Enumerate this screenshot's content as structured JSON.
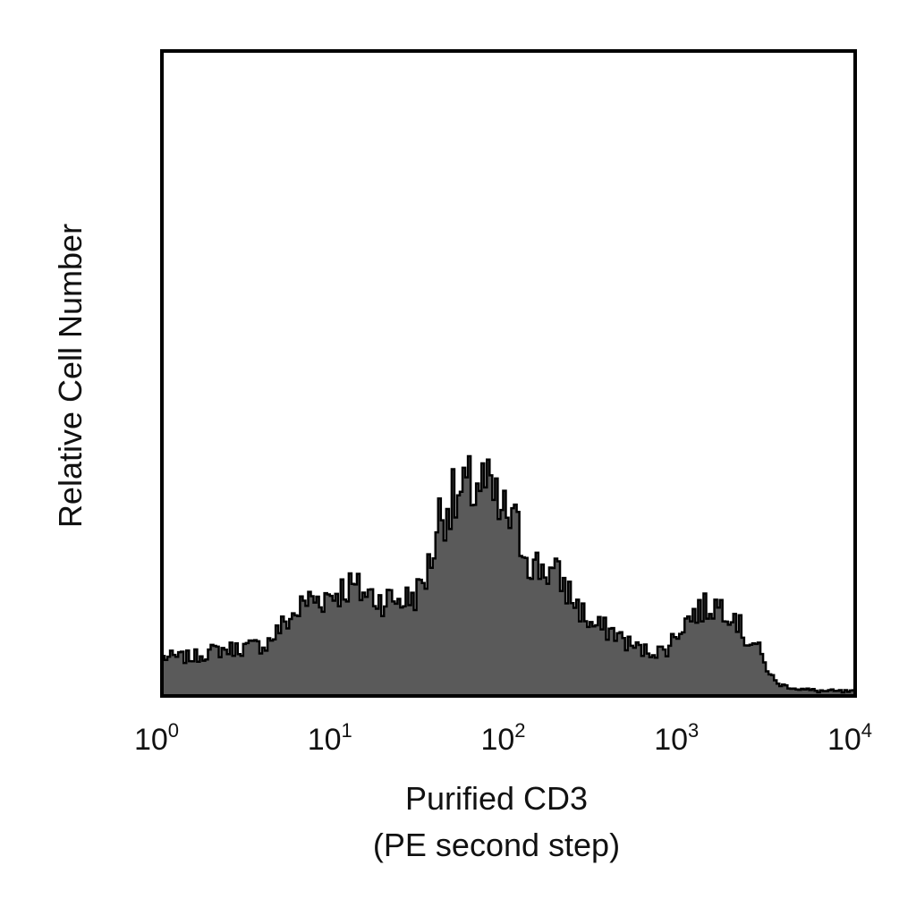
{
  "chart_data": {
    "type": "area",
    "subtype": "flow cytometry histogram",
    "title": "",
    "xlabel_lines": [
      "Purified CD3",
      "(PE second step)"
    ],
    "ylabel": "Relative Cell Number",
    "x_scale": "log10",
    "xlim": [
      1,
      10000
    ],
    "x_ticks": [
      {
        "base": "10",
        "exp": "0",
        "value": 1
      },
      {
        "base": "10",
        "exp": "1",
        "value": 10
      },
      {
        "base": "10",
        "exp": "2",
        "value": 100
      },
      {
        "base": "10",
        "exp": "3",
        "value": 1000
      },
      {
        "base": "10",
        "exp": "4",
        "value": 10000
      }
    ],
    "ylim": [
      0,
      100
    ],
    "y_ticks_visible": false,
    "grid": false,
    "legend": "none",
    "fill_color": "#5a5a5a",
    "line_color": "#000000",
    "series": [
      {
        "x": [
          1.0,
          1.5,
          2.0,
          3.0,
          4.0,
          5.0,
          6.0,
          7.0,
          8.0,
          10.0,
          12.0,
          15.0,
          18.0,
          22.0,
          26.0,
          30.0,
          35.0,
          40.0,
          45.0,
          50.0,
          55.0,
          60.0,
          65.0,
          70.0,
          75.0,
          80.0,
          90.0,
          100.0,
          120.0,
          140.0,
          160.0,
          200.0,
          250.0,
          300.0,
          400.0,
          500.0,
          600.0,
          700.0,
          800.0,
          900.0,
          1000.0,
          1200.0,
          1500.0,
          1700.0,
          2000.0,
          2300.0,
          2700.0,
          3000.0,
          3500.0,
          4000.0,
          5000.0,
          6000.0,
          10000.0
        ],
        "y": [
          6,
          6,
          7,
          7.5,
          8,
          11,
          13,
          15,
          15,
          16,
          17,
          16,
          15,
          15,
          15,
          16,
          20,
          28,
          30,
          30,
          31,
          32,
          33,
          33,
          32,
          31,
          28,
          28,
          24,
          20,
          20,
          18,
          14,
          11,
          10,
          8,
          7,
          7,
          7,
          9,
          11,
          13,
          14,
          14,
          13,
          9,
          8,
          5,
          2,
          1.5,
          1,
          0.8,
          0.6
        ]
      }
    ]
  }
}
